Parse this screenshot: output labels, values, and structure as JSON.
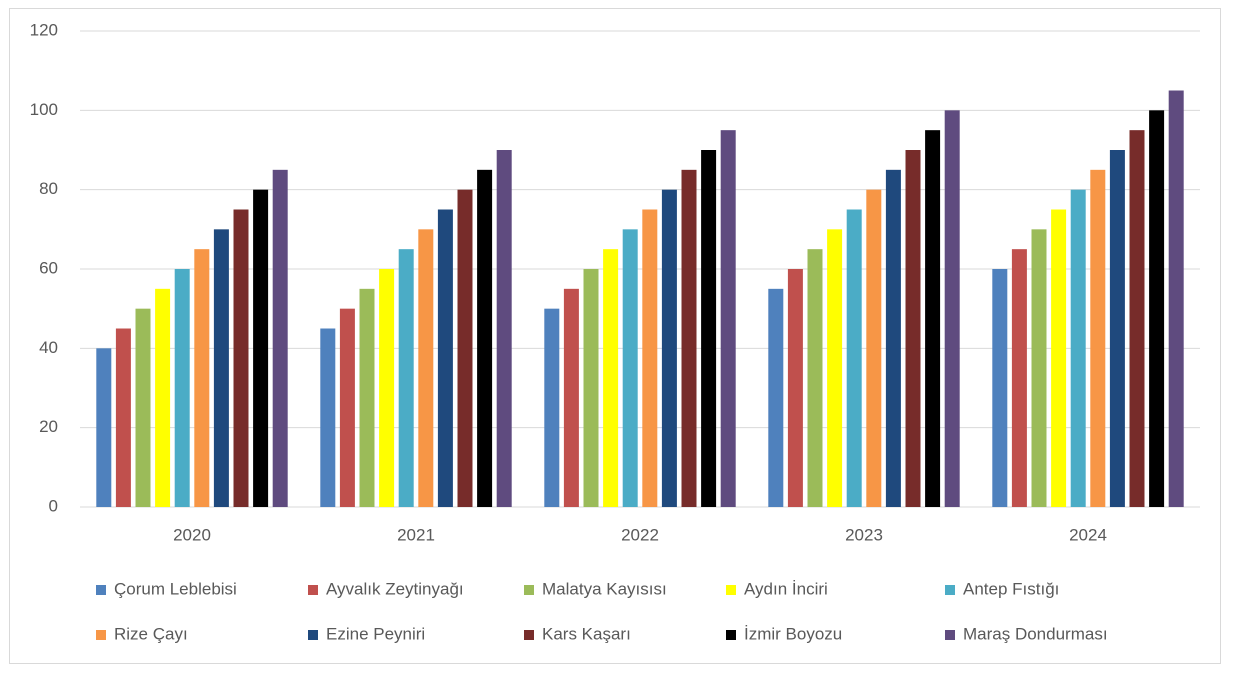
{
  "chart_data": {
    "type": "bar",
    "categories": [
      "2020",
      "2021",
      "2022",
      "2023",
      "2024"
    ],
    "series": [
      {
        "name": "Çorum Leblebisi",
        "color": "#4f81bd",
        "values": [
          40,
          45,
          50,
          55,
          60
        ]
      },
      {
        "name": "Ayvalık Zeytinyağı",
        "color": "#c0504d",
        "values": [
          45,
          50,
          55,
          60,
          65
        ]
      },
      {
        "name": "Malatya Kayısısı",
        "color": "#9bbb59",
        "values": [
          50,
          55,
          60,
          65,
          70
        ]
      },
      {
        "name": "Aydın İnciri",
        "color": "#ffff00",
        "values": [
          55,
          60,
          65,
          70,
          75
        ]
      },
      {
        "name": "Antep Fıstığı",
        "color": "#4bacc6",
        "values": [
          60,
          65,
          70,
          75,
          80
        ]
      },
      {
        "name": "Rize Çayı",
        "color": "#f79646",
        "values": [
          65,
          70,
          75,
          80,
          85
        ]
      },
      {
        "name": "Ezine Peyniri",
        "color": "#1f497d",
        "values": [
          70,
          75,
          80,
          85,
          90
        ]
      },
      {
        "name": "Kars Kaşarı",
        "color": "#772c2a",
        "values": [
          75,
          80,
          85,
          90,
          95
        ]
      },
      {
        "name": "İzmir Boyozu",
        "color": "#000000",
        "values": [
          80,
          85,
          90,
          95,
          100
        ]
      },
      {
        "name": "Maraş Dondurması",
        "color": "#5f4b7f",
        "values": [
          85,
          90,
          95,
          100,
          105
        ]
      }
    ],
    "ylim": [
      0,
      120
    ],
    "yticks": [
      0,
      20,
      40,
      60,
      80,
      100,
      120
    ],
    "grid": true,
    "legend": "bottom"
  }
}
